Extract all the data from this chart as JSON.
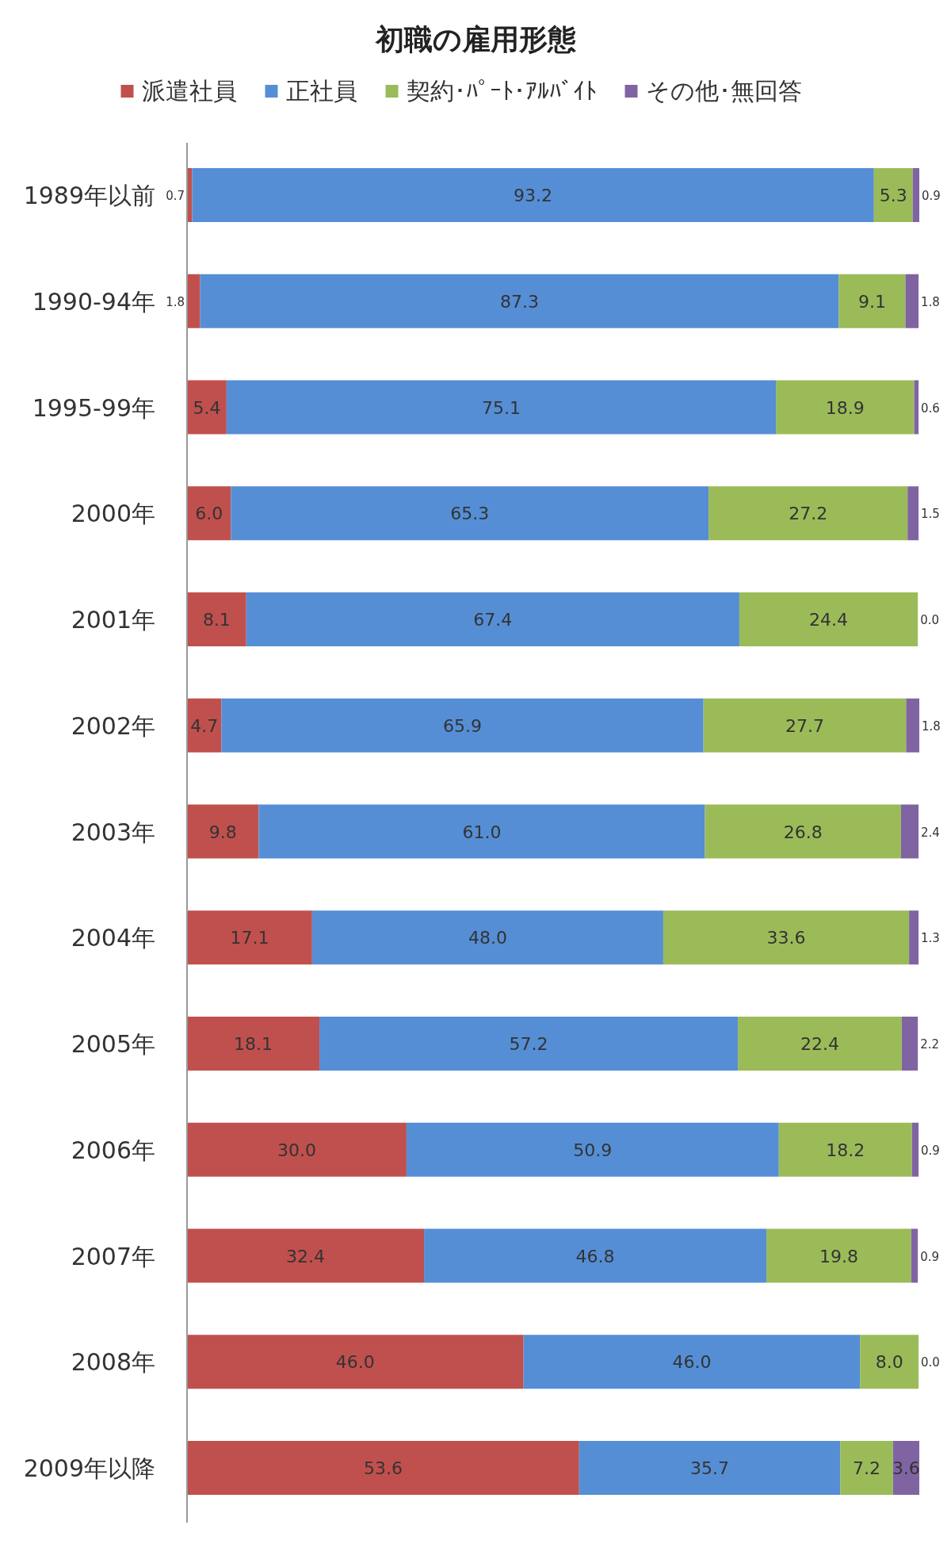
{
  "chart_data": {
    "type": "bar",
    "orientation": "horizontal",
    "stacked": true,
    "title": "初職の雇用形態",
    "legend": "top",
    "tick_labels": "y",
    "xlim": [
      0,
      100.1
    ],
    "categories": [
      "1989年以前",
      "1990-94年",
      "1995-99年",
      "2000年",
      "2001年",
      "2002年",
      "2003年",
      "2004年",
      "2005年",
      "2006年",
      "2007年",
      "2008年",
      "2009年以降"
    ],
    "series": [
      {
        "name": "派遣社員",
        "color": "#c0504d",
        "values": [
          0.7,
          1.8,
          5.4,
          6.0,
          8.1,
          4.7,
          9.8,
          17.1,
          18.1,
          30.0,
          32.4,
          46.0,
          53.6
        ],
        "value_labels": [
          "0.7",
          "1.8",
          "5.4",
          "6.0",
          "8.1",
          "4.7",
          "9.8",
          "17.1",
          "18.1",
          "30.0",
          "32.4",
          "46.0",
          "53.6"
        ]
      },
      {
        "name": "正社員",
        "color": "#558ed5",
        "values": [
          93.2,
          87.3,
          75.1,
          65.3,
          67.4,
          65.9,
          61.0,
          48.0,
          57.2,
          50.9,
          46.8,
          46.0,
          35.7
        ],
        "value_labels": [
          "93.2",
          "87.3",
          "75.1",
          "65.3",
          "67.4",
          "65.9",
          "61.0",
          "48.0",
          "57.2",
          "50.9",
          "46.8",
          "46.0",
          "35.7"
        ]
      },
      {
        "name": "契約･ﾊﾟｰﾄ･ｱﾙﾊﾞｲﾄ",
        "color": "#9bbb59",
        "values": [
          5.3,
          9.1,
          18.9,
          27.2,
          24.4,
          27.7,
          26.8,
          33.6,
          22.4,
          18.2,
          19.8,
          8.0,
          7.2
        ],
        "value_labels": [
          "5.3",
          "9.1",
          "18.9",
          "27.2",
          "24.4",
          "27.7",
          "26.8",
          "33.6",
          "22.4",
          "18.2",
          "19.8",
          "8.0",
          "7.2"
        ]
      },
      {
        "name": "その他･無回答",
        "color": "#8064a2",
        "values": [
          0.9,
          1.8,
          0.6,
          1.5,
          0.0,
          1.8,
          2.4,
          1.3,
          2.2,
          0.9,
          0.9,
          0.0,
          3.6
        ],
        "value_labels": [
          "0.9",
          "1.8",
          "0.6",
          "1.5",
          "0.0",
          "1.8",
          "2.4",
          "1.3",
          "2.2",
          "0.9",
          "0.9",
          "0.0",
          "3.6"
        ]
      }
    ]
  }
}
